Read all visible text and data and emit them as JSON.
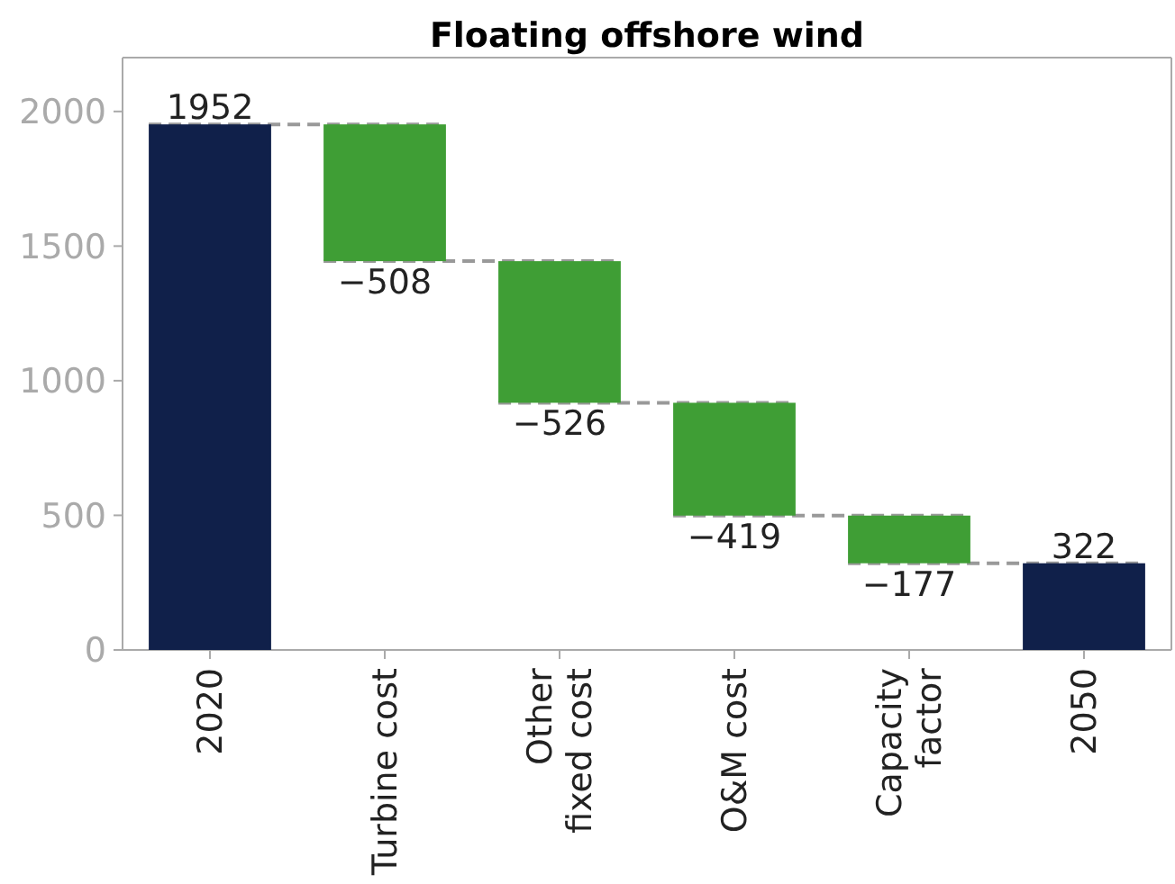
{
  "chart_data": {
    "type": "bar",
    "title": "Floating offshore wind",
    "categories": [
      "2020",
      "Turbine cost",
      "Other\nfixed cost",
      "O&M cost",
      "Capacity\nfactor",
      "2050"
    ],
    "values": [
      1952,
      -508,
      -526,
      -419,
      -177,
      322
    ],
    "base": [
      0,
      1952,
      1444,
      918,
      499,
      0
    ],
    "colors": [
      "#10204a",
      "#3f9e35",
      "#3f9e35",
      "#3f9e35",
      "#3f9e35",
      "#10204a"
    ],
    "value_labels": [
      "1952",
      "−508",
      "−526",
      "−419",
      "−177",
      "322"
    ],
    "ylim": [
      0,
      2200
    ],
    "yticks": [
      0,
      500,
      1000,
      1500,
      2000
    ],
    "grid": false
  }
}
